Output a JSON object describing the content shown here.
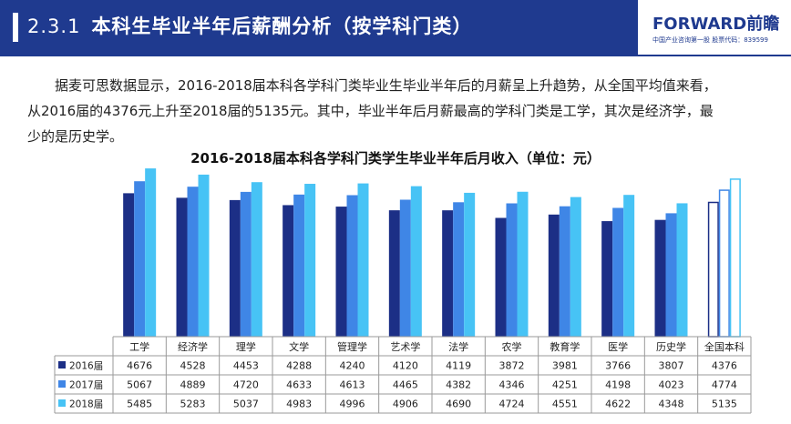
{
  "header": {
    "section_number": "2.3.1",
    "title": "本科生毕业半年后薪酬分析（按学科门类）"
  },
  "logo": {
    "brand": "FORWARD前瞻",
    "subtitle": "中国产业咨询第一股  股票代码：839599"
  },
  "paragraph": {
    "line1": "据麦可思数据显示，2016-2018届本科各学科门类毕业生毕业半年后的月薪呈上升趋势，从全国平均值来看，",
    "line2": "从2016届的4376元上升至2018届的5135元。其中，毕业半年后月薪最高的学科门类是工学，其次是经济学，最",
    "line3": "少的是历史学。"
  },
  "colors": {
    "header_blue": "#1f3a8f",
    "series_2016": "#1c2f86",
    "series_2017": "#3f86e6",
    "series_2018": "#47c3f5"
  },
  "chart_data": {
    "type": "bar",
    "title": "2016-2018届本科各学科门类学生毕业半年后月收入（单位：元）",
    "categories": [
      "工学",
      "经济学",
      "理学",
      "文学",
      "管理学",
      "艺术学",
      "法学",
      "农学",
      "教育学",
      "医学",
      "历史学",
      "全国本科"
    ],
    "series": [
      {
        "name": "2016届",
        "values": [
          4676,
          4528,
          4453,
          4288,
          4240,
          4120,
          4119,
          3872,
          3981,
          3766,
          3807,
          4376
        ]
      },
      {
        "name": "2017届",
        "values": [
          5067,
          4889,
          4720,
          4633,
          4613,
          4465,
          4382,
          4346,
          4251,
          4198,
          4023,
          4774
        ]
      },
      {
        "name": "2018届",
        "values": [
          5485,
          5283,
          5037,
          4983,
          4996,
          4906,
          4690,
          4724,
          4551,
          4622,
          4348,
          5135
        ]
      }
    ],
    "ylim": [
      0,
      5500
    ],
    "grid": false,
    "legend": "table-left",
    "hollow_categories": [
      "全国本科"
    ]
  }
}
